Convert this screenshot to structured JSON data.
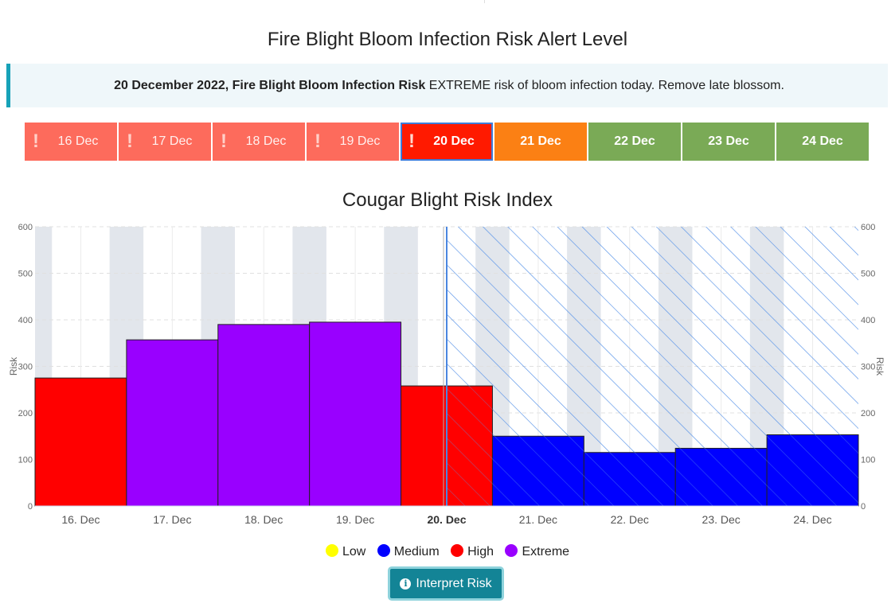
{
  "page_title": "Fire Blight Bloom Infection Risk Alert Level",
  "alert": {
    "bold_text": "20 December 2022, Fire Blight Bloom Infection Risk",
    "message": "EXTREME risk of bloom infection today. Remove late blossom.",
    "accent_color": "#17a2b8"
  },
  "days": [
    {
      "label": "16 Dec",
      "status": "past",
      "icon": "exclamation-icon",
      "color": "#fd6b5c"
    },
    {
      "label": "17 Dec",
      "status": "past",
      "icon": "exclamation-icon",
      "color": "#fd6b5c"
    },
    {
      "label": "18 Dec",
      "status": "past",
      "icon": "exclamation-icon",
      "color": "#fd6b5c"
    },
    {
      "label": "19 Dec",
      "status": "past",
      "icon": "exclamation-icon",
      "color": "#fd6b5c"
    },
    {
      "label": "20 Dec",
      "status": "today",
      "icon": "exclamation-icon",
      "color": "#ff1a00"
    },
    {
      "label": "21 Dec",
      "status": "forecast",
      "color": "#fb8014"
    },
    {
      "label": "22 Dec",
      "status": "forecast",
      "color": "#7aaa56"
    },
    {
      "label": "23 Dec",
      "status": "forecast",
      "color": "#7aaa56"
    },
    {
      "label": "24 Dec",
      "status": "forecast",
      "color": "#7aaa56"
    }
  ],
  "chart_data": {
    "type": "bar",
    "title": "Cougar Blight Risk Index",
    "categories": [
      "16. Dec",
      "17. Dec",
      "18. Dec",
      "19. Dec",
      "20. Dec",
      "21. Dec",
      "22. Dec",
      "23. Dec",
      "24. Dec"
    ],
    "values": [
      275,
      357,
      390,
      395,
      258,
      150,
      115,
      124,
      153
    ],
    "levels": [
      "High",
      "Extreme",
      "Extreme",
      "Extreme",
      "High",
      "Medium",
      "Medium",
      "Medium",
      "Medium"
    ],
    "highlight_category": "20. Dec",
    "forecast_from": "20. Dec",
    "ylabel": "Risk",
    "ylim": [
      0,
      600
    ],
    "yticks": [
      0,
      100,
      200,
      300,
      400,
      500,
      600
    ],
    "grid": true,
    "legend_position": "bottom-center",
    "legend": [
      {
        "name": "Low",
        "color": "#ffff00"
      },
      {
        "name": "Medium",
        "color": "#0000ff"
      },
      {
        "name": "High",
        "color": "#ff0000"
      },
      {
        "name": "Extreme",
        "color": "#9900ff"
      }
    ]
  },
  "interpret_button": {
    "label": "Interpret Risk",
    "icon": "info-icon"
  }
}
